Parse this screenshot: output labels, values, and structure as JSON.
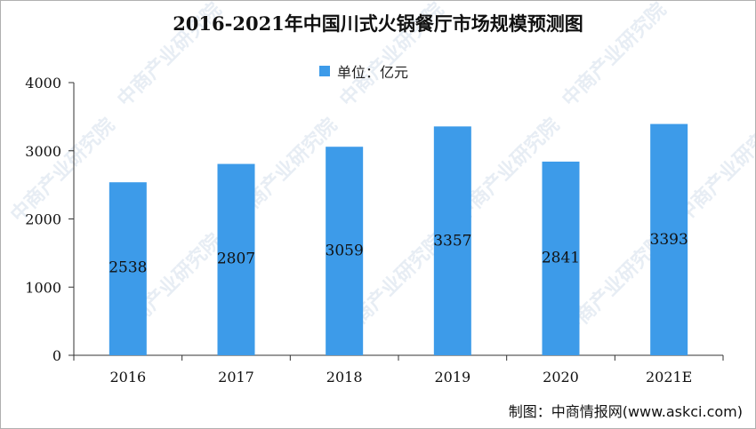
{
  "title": "2016-2021年中国川式火锅餐厅市场规模预测图",
  "legend_label": "单位：亿元",
  "source": "制图：中商情报网(www.askci.com)",
  "watermark_text": "中商产业研究院",
  "colors": {
    "bar": "#3d9be9",
    "axis": "#333333",
    "text": "#111111",
    "watermark": "#c9d6e6"
  },
  "chart_data": {
    "type": "bar",
    "title": "2016-2021年中国川式火锅餐厅市场规模预测图",
    "categories": [
      "2016",
      "2017",
      "2018",
      "2019",
      "2020",
      "2021E"
    ],
    "series": [
      {
        "name": "单位：亿元",
        "values": [
          2538,
          2807,
          3059,
          3357,
          2841,
          3393
        ]
      }
    ],
    "data_labels": [
      "2538",
      "2807",
      "3059",
      "3357",
      "2841",
      "3393"
    ],
    "yticks": [
      "0",
      "1000",
      "2000",
      "3000",
      "4000"
    ],
    "ylim": [
      0,
      4000
    ],
    "xlabel": "",
    "ylabel": "",
    "grid": false,
    "legend": "top-center"
  }
}
